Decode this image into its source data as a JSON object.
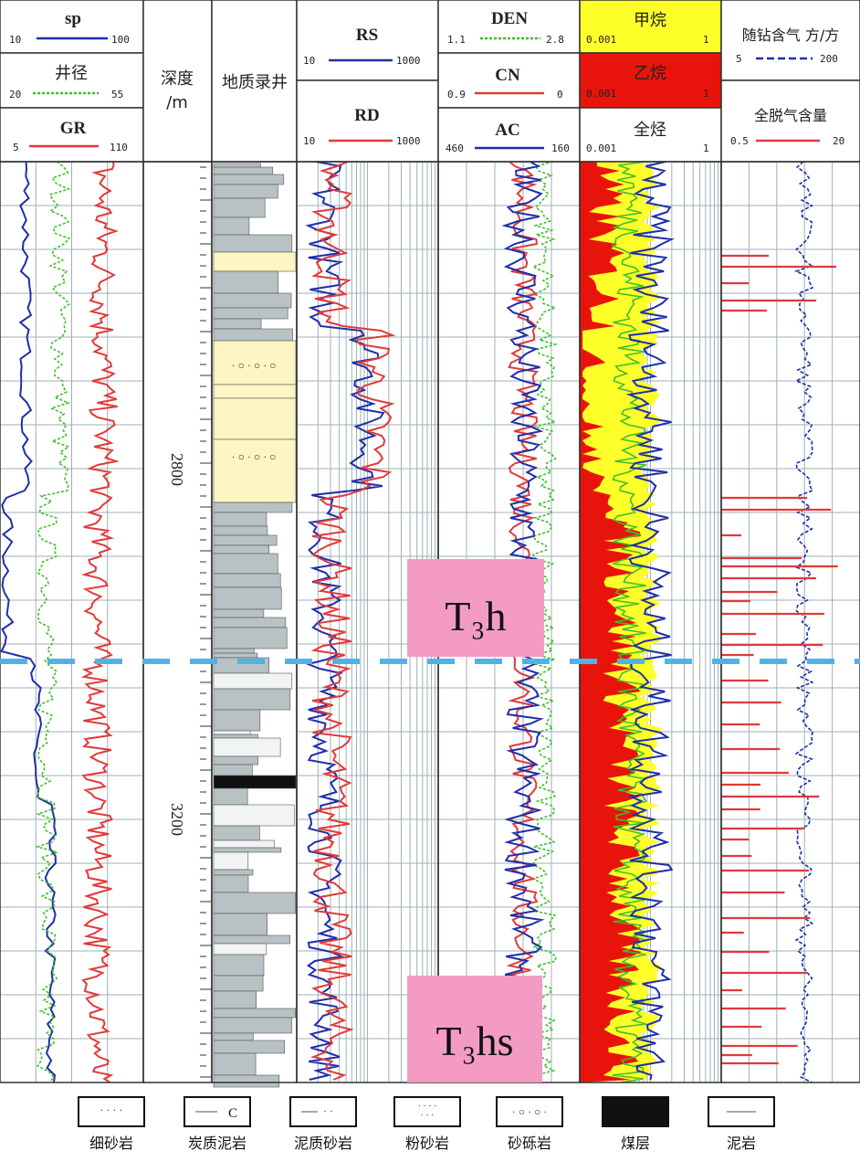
{
  "headers": {
    "sp": {
      "name": "sp",
      "min": "10",
      "max": "100"
    },
    "caliper": {
      "name": "井径",
      "min": "20",
      "max": "55"
    },
    "gr": {
      "name": "GR",
      "min": "5",
      "max": "110"
    },
    "depth_title": {
      "line1": "深度",
      "line2": "/m"
    },
    "geo_title": "地质录井",
    "rs": {
      "name": "RS",
      "min": "10",
      "max": "1000"
    },
    "rd": {
      "name": "RD",
      "min": "10",
      "max": "1000"
    },
    "den": {
      "name": "DEN",
      "min": "1.1",
      "max": "2.8"
    },
    "cn": {
      "name": "CN",
      "min": "0.9",
      "max": "0"
    },
    "ac": {
      "name": "AC",
      "min": "460",
      "max": "160"
    },
    "methane": {
      "name": "甲烷",
      "min": "0.001",
      "max": "1"
    },
    "ethane": {
      "name": "乙烷",
      "min": "0.001",
      "max": "1"
    },
    "total": {
      "name": "全烃",
      "min": "0.001",
      "max": "1"
    },
    "drill_gas": {
      "name": "随钻含气  方/方",
      "min": "5",
      "max": "200"
    },
    "degas": {
      "name": "全脱气含量",
      "min": "0.5",
      "max": "20"
    }
  },
  "depth_labels": [
    "2800",
    "3200"
  ],
  "formations": [
    "T₃h",
    "T₃hs"
  ],
  "legend": [
    {
      "label": "细砂岩"
    },
    {
      "label": "炭质泥岩",
      "symbol": "C"
    },
    {
      "label": "泥质砂岩"
    },
    {
      "label": "粉砂岩"
    },
    {
      "label": "砂砾岩"
    },
    {
      "label": "煤层"
    },
    {
      "label": "泥岩"
    }
  ],
  "colors": {
    "blue": "#1f2fa8",
    "red": "#e03a3a",
    "green": "#3cbf2a",
    "yellow": "#ffff2a",
    "pink": "#f49bc4",
    "boundary": "#4fb3e6",
    "sand": "#fdf5c3",
    "shale": "#b8c2c4"
  }
}
